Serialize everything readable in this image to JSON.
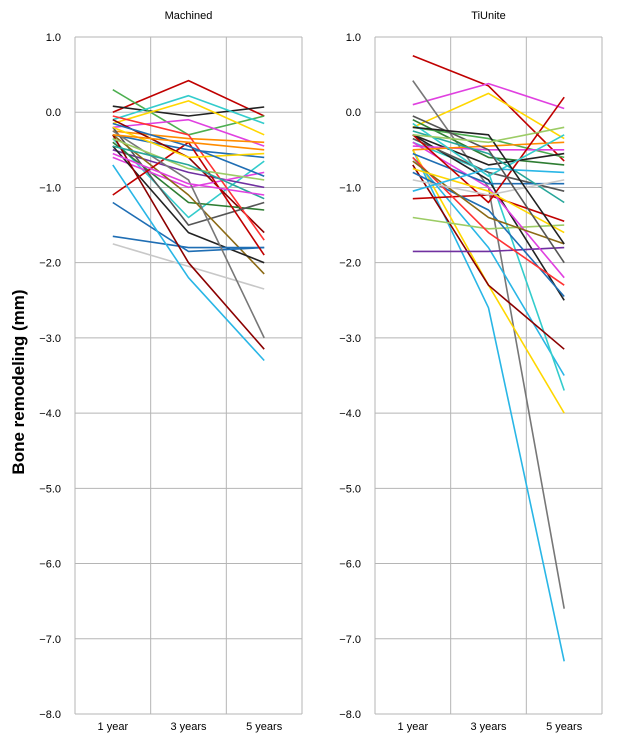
{
  "chart_data": [
    {
      "type": "line",
      "title": "Machined",
      "categories": [
        "1 year",
        "3 years",
        "5 years"
      ],
      "ylabel": "Bone remodeling (mm)",
      "ylim": [
        -8.0,
        1.0
      ],
      "yticks": [
        "1.0",
        "0.0",
        "−1.0",
        "−2.0",
        "−3.0",
        "−4.0",
        "−5.0",
        "−6.0",
        "−7.0",
        "−8.0"
      ],
      "grid": true,
      "series": [
        {
          "color": "#c00000",
          "values": [
            0.0,
            0.42,
            -0.05
          ]
        },
        {
          "color": "#222222",
          "values": [
            0.08,
            -0.05,
            0.07
          ]
        },
        {
          "color": "#4caf50",
          "values": [
            0.3,
            -0.3,
            -0.05
          ]
        },
        {
          "color": "#33cccc",
          "values": [
            -0.1,
            0.22,
            -0.15
          ]
        },
        {
          "color": "#ffd700",
          "values": [
            -0.15,
            0.15,
            -0.3
          ]
        },
        {
          "color": "#e040e0",
          "values": [
            -0.2,
            -0.1,
            -0.45
          ]
        },
        {
          "color": "#1f6eb4",
          "values": [
            -0.3,
            -0.5,
            -0.6
          ]
        },
        {
          "color": "#ff8c00",
          "values": [
            -0.25,
            -0.35,
            -0.4
          ]
        },
        {
          "color": "#33cccc",
          "values": [
            -0.35,
            -1.4,
            -0.65
          ]
        },
        {
          "color": "#7030a0",
          "values": [
            -0.5,
            -0.8,
            -1.0
          ]
        },
        {
          "color": "#8b0000",
          "values": [
            -0.1,
            -0.6,
            -1.6
          ]
        },
        {
          "color": "#2e7d32",
          "values": [
            -0.4,
            -1.2,
            -1.3
          ]
        },
        {
          "color": "#e040e0",
          "values": [
            -0.6,
            -1.0,
            -0.8
          ]
        },
        {
          "color": "#ff3333",
          "values": [
            -0.05,
            -0.3,
            -1.7
          ]
        },
        {
          "color": "#555555",
          "values": [
            -0.2,
            -1.5,
            -1.2
          ]
        },
        {
          "color": "#8b6914",
          "values": [
            -0.3,
            -1.1,
            -2.15
          ]
        },
        {
          "color": "#222222",
          "values": [
            -0.45,
            -1.6,
            -2.0
          ]
        },
        {
          "color": "#1f6eb4",
          "values": [
            -1.2,
            -1.85,
            -1.8
          ]
        },
        {
          "color": "#1f6eb4",
          "values": [
            -1.65,
            -1.8,
            -1.8
          ]
        },
        {
          "color": "#c8c8c8",
          "values": [
            -1.75,
            -2.05,
            -2.35
          ]
        },
        {
          "color": "#c00000",
          "values": [
            -1.1,
            -0.4,
            -1.9
          ]
        },
        {
          "color": "#8b0000",
          "values": [
            -0.3,
            -2.0,
            -3.15
          ]
        },
        {
          "color": "#777777",
          "values": [
            -0.25,
            -0.9,
            -3.0
          ]
        },
        {
          "color": "#29b6e6",
          "values": [
            -0.7,
            -2.2,
            -3.3
          ]
        },
        {
          "color": "#9ccc65",
          "values": [
            -0.35,
            -0.75,
            -0.9
          ]
        },
        {
          "color": "#ffd700",
          "values": [
            -0.2,
            -0.6,
            -0.55
          ]
        },
        {
          "color": "#1f6eb4",
          "values": [
            -0.15,
            -0.45,
            -0.85
          ]
        },
        {
          "color": "#ff8c00",
          "values": [
            -0.3,
            -0.4,
            -0.5
          ]
        },
        {
          "color": "#26a69a",
          "values": [
            -0.45,
            -0.7,
            -1.15
          ]
        },
        {
          "color": "#e040e0",
          "values": [
            -0.55,
            -0.95,
            -1.1
          ]
        }
      ]
    },
    {
      "type": "line",
      "title": "TiUnite",
      "categories": [
        "1 year",
        "3 years",
        "5 years"
      ],
      "ylim": [
        -8.0,
        1.0
      ],
      "yticks": [
        "1.0",
        "0.0",
        "−1.0",
        "−2.0",
        "−3.0",
        "−4.0",
        "−5.0",
        "−6.0",
        "−7.0",
        "−8.0"
      ],
      "grid": true,
      "series": [
        {
          "color": "#c00000",
          "values": [
            0.75,
            0.35,
            -0.65
          ]
        },
        {
          "color": "#e040e0",
          "values": [
            0.1,
            0.38,
            0.05
          ]
        },
        {
          "color": "#ffd700",
          "values": [
            -0.2,
            0.25,
            -0.35
          ]
        },
        {
          "color": "#777777",
          "values": [
            0.42,
            -1.0,
            -6.6
          ]
        },
        {
          "color": "#29b6e6",
          "values": [
            -0.5,
            -2.6,
            -7.3
          ]
        },
        {
          "color": "#ffd700",
          "values": [
            -0.5,
            -2.3,
            -4.0
          ]
        },
        {
          "color": "#29b6e6",
          "values": [
            -0.6,
            -1.8,
            -3.5
          ]
        },
        {
          "color": "#33cccc",
          "values": [
            -0.4,
            -0.8,
            -3.7
          ]
        },
        {
          "color": "#8b0000",
          "values": [
            -0.7,
            -2.3,
            -3.15
          ]
        },
        {
          "color": "#222222",
          "values": [
            -0.3,
            -0.9,
            -2.5
          ]
        },
        {
          "color": "#7030a0",
          "values": [
            -1.85,
            -1.85,
            -1.8
          ]
        },
        {
          "color": "#9ccc65",
          "values": [
            -1.4,
            -1.55,
            -1.5
          ]
        },
        {
          "color": "#c00000",
          "values": [
            -1.15,
            -1.1,
            -1.45
          ]
        },
        {
          "color": "#1f6eb4",
          "values": [
            -0.8,
            -1.3,
            -2.45
          ]
        },
        {
          "color": "#e040e0",
          "values": [
            -0.4,
            -1.0,
            -2.2
          ]
        },
        {
          "color": "#ff3333",
          "values": [
            -0.6,
            -1.6,
            -2.3
          ]
        },
        {
          "color": "#2e7d32",
          "values": [
            -0.1,
            -0.6,
            -0.7
          ]
        },
        {
          "color": "#4caf50",
          "values": [
            -0.2,
            -0.35,
            -0.6
          ]
        },
        {
          "color": "#222222",
          "values": [
            -0.3,
            -0.7,
            -0.55
          ]
        },
        {
          "color": "#555555",
          "values": [
            -0.35,
            -0.8,
            -1.05
          ]
        },
        {
          "color": "#e040e0",
          "values": [
            -0.45,
            -0.5,
            -0.5
          ]
        },
        {
          "color": "#ff8c00",
          "values": [
            -0.5,
            -0.45,
            -0.4
          ]
        },
        {
          "color": "#1f6eb4",
          "values": [
            -0.55,
            -0.95,
            -0.95
          ]
        },
        {
          "color": "#26a69a",
          "values": [
            -0.25,
            -0.55,
            -1.2
          ]
        },
        {
          "color": "#c00000",
          "values": [
            -0.3,
            -1.2,
            0.2
          ]
        },
        {
          "color": "#33cccc",
          "values": [
            -0.15,
            -0.85,
            -0.3
          ]
        },
        {
          "color": "#8b6914",
          "values": [
            -0.65,
            -1.4,
            -1.75
          ]
        },
        {
          "color": "#ffd700",
          "values": [
            -0.75,
            -1.05,
            -1.6
          ]
        },
        {
          "color": "#c8c8c8",
          "values": [
            -0.9,
            -1.1,
            -0.9
          ]
        },
        {
          "color": "#29b6e6",
          "values": [
            -1.05,
            -0.75,
            -0.8
          ]
        },
        {
          "color": "#555555",
          "values": [
            -0.05,
            -0.5,
            -2.0
          ]
        },
        {
          "color": "#222222",
          "values": [
            -0.2,
            -0.3,
            -1.75
          ]
        },
        {
          "color": "#9ccc65",
          "values": [
            -0.3,
            -0.4,
            -0.2
          ]
        }
      ]
    }
  ]
}
